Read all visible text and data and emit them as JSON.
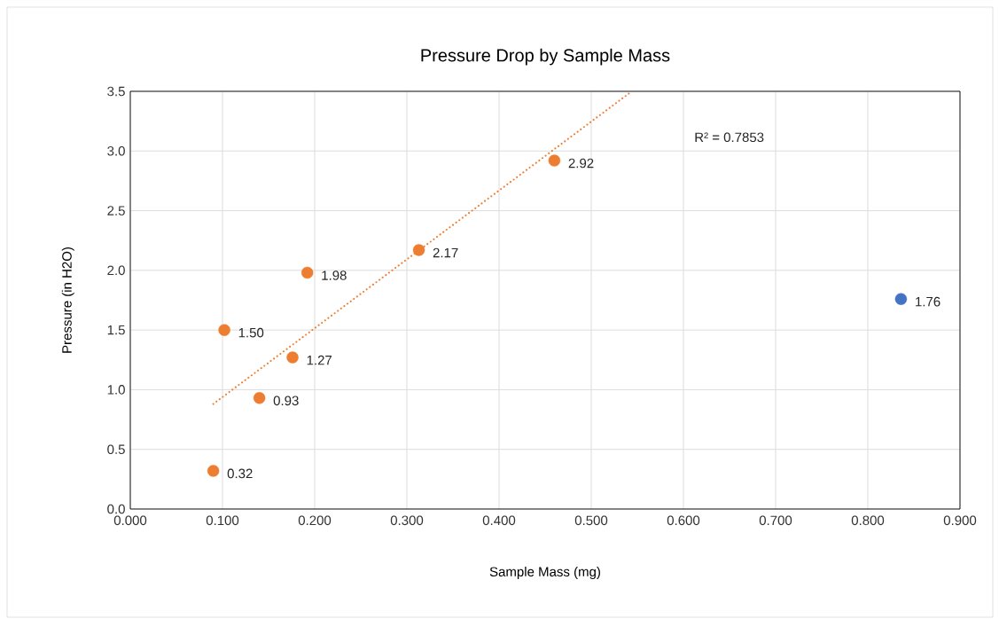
{
  "chart_data": {
    "type": "scatter",
    "title": "Pressure Drop by Sample Mass",
    "xlabel": "Sample Mass (mg)",
    "ylabel": "Pressure (in H2O)",
    "series": [
      {
        "color": "#ed7d31",
        "x": [
          0.09,
          0.102,
          0.14,
          0.176,
          0.192,
          0.313,
          0.46
        ],
        "values": [
          0.32,
          1.5,
          0.93,
          1.27,
          1.98,
          2.17,
          2.92
        ],
        "value_labels": [
          "0.32",
          "1.50",
          "0.93",
          "1.27",
          "1.98",
          "2.17",
          "2.92"
        ]
      },
      {
        "color": "#4472c4",
        "x": [
          0.836
        ],
        "values": [
          1.76
        ],
        "value_labels": [
          "1.76"
        ]
      },
      {
        "type": "line",
        "color": "#ed7d31",
        "line_style": "dotted",
        "marker": "none",
        "x": [
          0.09,
          0.544
        ],
        "values": [
          0.88,
          3.5
        ]
      }
    ],
    "annotations": [
      "R² = 0.7853"
    ],
    "xlim": [
      0,
      0.9
    ],
    "ylim": [
      0,
      3.5
    ],
    "xticks": [
      {
        "value": 0,
        "label": "0.000"
      },
      {
        "value": 0.1,
        "label": "0.100"
      },
      {
        "value": 0.2,
        "label": "0.200"
      },
      {
        "value": 0.3,
        "label": "0.300"
      },
      {
        "value": 0.4,
        "label": "0.400"
      },
      {
        "value": 0.5,
        "label": "0.500"
      },
      {
        "value": 0.6,
        "label": "0.600"
      },
      {
        "value": 0.7,
        "label": "0.700"
      },
      {
        "value": 0.8,
        "label": "0.800"
      },
      {
        "value": 0.9,
        "label": "0.900"
      }
    ],
    "yticks": [
      {
        "value": 0,
        "label": "0.0"
      },
      {
        "value": 0.5,
        "label": "0.5"
      },
      {
        "value": 1,
        "label": "1.0"
      },
      {
        "value": 1.5,
        "label": "1.5"
      },
      {
        "value": 2,
        "label": "2.0"
      },
      {
        "value": 2.5,
        "label": "2.5"
      },
      {
        "value": 3,
        "label": "3.0"
      },
      {
        "value": 3.5,
        "label": "3.5"
      }
    ],
    "grid": true,
    "marker": "circle"
  }
}
